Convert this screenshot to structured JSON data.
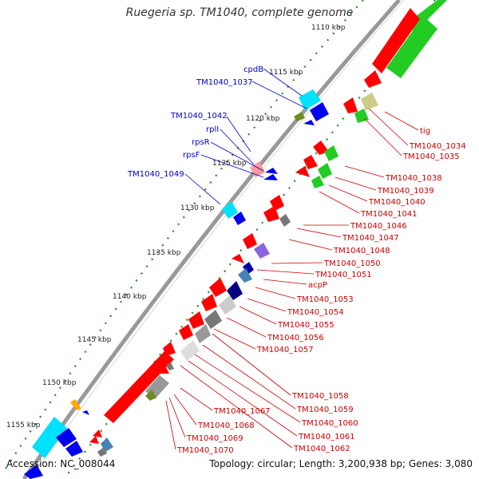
{
  "title": "Ruegeria sp. TM1040, complete genome",
  "footer": {
    "accession": "Accession: NC_008044",
    "topology": "Topology: circular; Length: 3,200,938 bp; Genes: 3,080"
  },
  "colors": {
    "backbone": "#999999",
    "tick_dots": "#228b22",
    "label_blue": "#0000cc",
    "label_red": "#cc0000",
    "gene_red": "#ff0000",
    "gene_green": "#22cc22",
    "gene_cyan": "#00e0ff",
    "gene_blue": "#0000ee",
    "gene_gray": "#777777",
    "gene_olive": "#cccc88",
    "gene_pink": "#ff9999",
    "gene_purple": "#8866dd",
    "gene_orange": "#ffaa00"
  },
  "kbp_labels": [
    "1110 kbp",
    "1115 kbp",
    "1120 kbp",
    "1125 kbp",
    "1130 kbp",
    "1135 kbp",
    "1140 kbp",
    "1145 kbp",
    "1150 kbp",
    "1155 kbp"
  ],
  "blue_labels": [
    "cpdB",
    "TM1040_1037",
    "TM1040_1042",
    "rplI",
    "rpsR",
    "rpsF",
    "TM1040_1049"
  ],
  "red_labels": [
    "tig",
    "TM1040_1034",
    "TM1040_1035",
    "TM1040_1038",
    "TM1040_1039",
    "TM1040_1040",
    "TM1040_1041",
    "TM1040_1046",
    "TM1040_1047",
    "TM1040_1048",
    "TM1040_1050",
    "TM1040_1051",
    "acpP",
    "TM1040_1053",
    "TM1040_1054",
    "TM1040_1055",
    "TM1040_1056",
    "TM1040_1057",
    "TM1040_1058",
    "TM1040_1059",
    "TM1040_1060",
    "TM1040_1061",
    "TM1040_1062",
    "TM1040_1067",
    "TM1040_1068",
    "TM1040_1069",
    "TM1040_1070"
  ]
}
